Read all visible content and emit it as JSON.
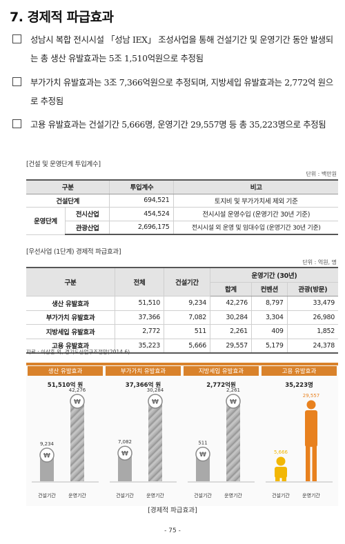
{
  "section": {
    "title": "7. 경제적 파급효과"
  },
  "bullets": [
    "성남시 복합 전시시설 「성남 IEX」 조성사업을 통해 건설기간 및 운영기간 동안 발생되는 총 생산 유발효과는 5조 1,510억원으로 추정됨",
    "부가가치 유발효과는 3조 7,366억원으로 추정되며, 지방세입 유발효과는 2,772억 원으로 추정됨",
    "고용 유발효과는 건설기간 5,666명, 운영기간 29,557명 등 총 35,223명으로 추정됨"
  ],
  "table1": {
    "caption": "[건설 및 운영단계 투입계수]",
    "unit": "단위 : 백만원",
    "headers": [
      "구분",
      "투입계수",
      "비고"
    ],
    "rows": [
      {
        "group": "건설단계",
        "sub": "",
        "value": "694,521",
        "note": "토지비 및 부가가치세 제외 기준"
      },
      {
        "group": "운영단계",
        "sub": "전시산업",
        "value": "454,524",
        "note": "전시시설 운영수입 (운영기간 30년 기준)"
      },
      {
        "group": "",
        "sub": "관광산업",
        "value": "2,696,175",
        "note": "전시시설 외 운영 및 임대수입 (운영기간 30년 기준)"
      }
    ]
  },
  "table2": {
    "caption": "[우선사업 (1단계) 경제적 파급효과]",
    "unit": "단위 : 억원, 명",
    "headers": {
      "category": "구분",
      "total": "전체",
      "construction": "건설기간",
      "operation": "운영기간 (30년)",
      "op_total": "합계",
      "convention": "컨벤션",
      "tourism": "관광(방문)"
    },
    "rows": [
      {
        "label": "생산 유발효과",
        "total": "51,510",
        "construction": "9,234",
        "op_total": "42,276",
        "convention": "8,797",
        "tourism": "33,479"
      },
      {
        "label": "부가가치 유발효과",
        "total": "37,366",
        "construction": "7,082",
        "op_total": "30,284",
        "convention": "3,304",
        "tourism": "26,980"
      },
      {
        "label": "지방세입 유발효과",
        "total": "2,772",
        "construction": "511",
        "op_total": "2,261",
        "convention": "409",
        "tourism": "1,852"
      },
      {
        "label": "고용 유발효과",
        "total": "35,223",
        "construction": "5,666",
        "op_total": "29,557",
        "convention": "5,179",
        "tourism": "24,378"
      }
    ],
    "source": "자료 : 이상훈 외, 경기도산업구조전망(2014.6)"
  },
  "infographic": {
    "panels": [
      {
        "title": "생산 유발효과",
        "total": "51,510억 원",
        "labels": [
          "건설기간",
          "운영기간"
        ],
        "values": [
          "9,234",
          "42,276"
        ],
        "kind": "coin"
      },
      {
        "title": "부가가치 유발효과",
        "total": "37,366억 원",
        "labels": [
          "건설기간",
          "운영기간"
        ],
        "values": [
          "7,082",
          "30,284"
        ],
        "kind": "coin"
      },
      {
        "title": "지방세입 유발효과",
        "total": "2,772억원",
        "labels": [
          "건설기간",
          "운영기간"
        ],
        "values": [
          "511",
          "2,261"
        ],
        "kind": "coin"
      },
      {
        "title": "고용 유발효과",
        "total": "35,223명",
        "labels": [
          "건설기간",
          "운영기간"
        ],
        "values": [
          "5,666",
          "29,557"
        ],
        "kind": "person"
      }
    ],
    "caption": "[경제적 파급효과]",
    "colors": {
      "header": "#d9822b",
      "gray": "#a9a9a9",
      "yellow": "#f2b705",
      "orange": "#e8811e"
    }
  },
  "page": {
    "number": "- 75 -"
  }
}
